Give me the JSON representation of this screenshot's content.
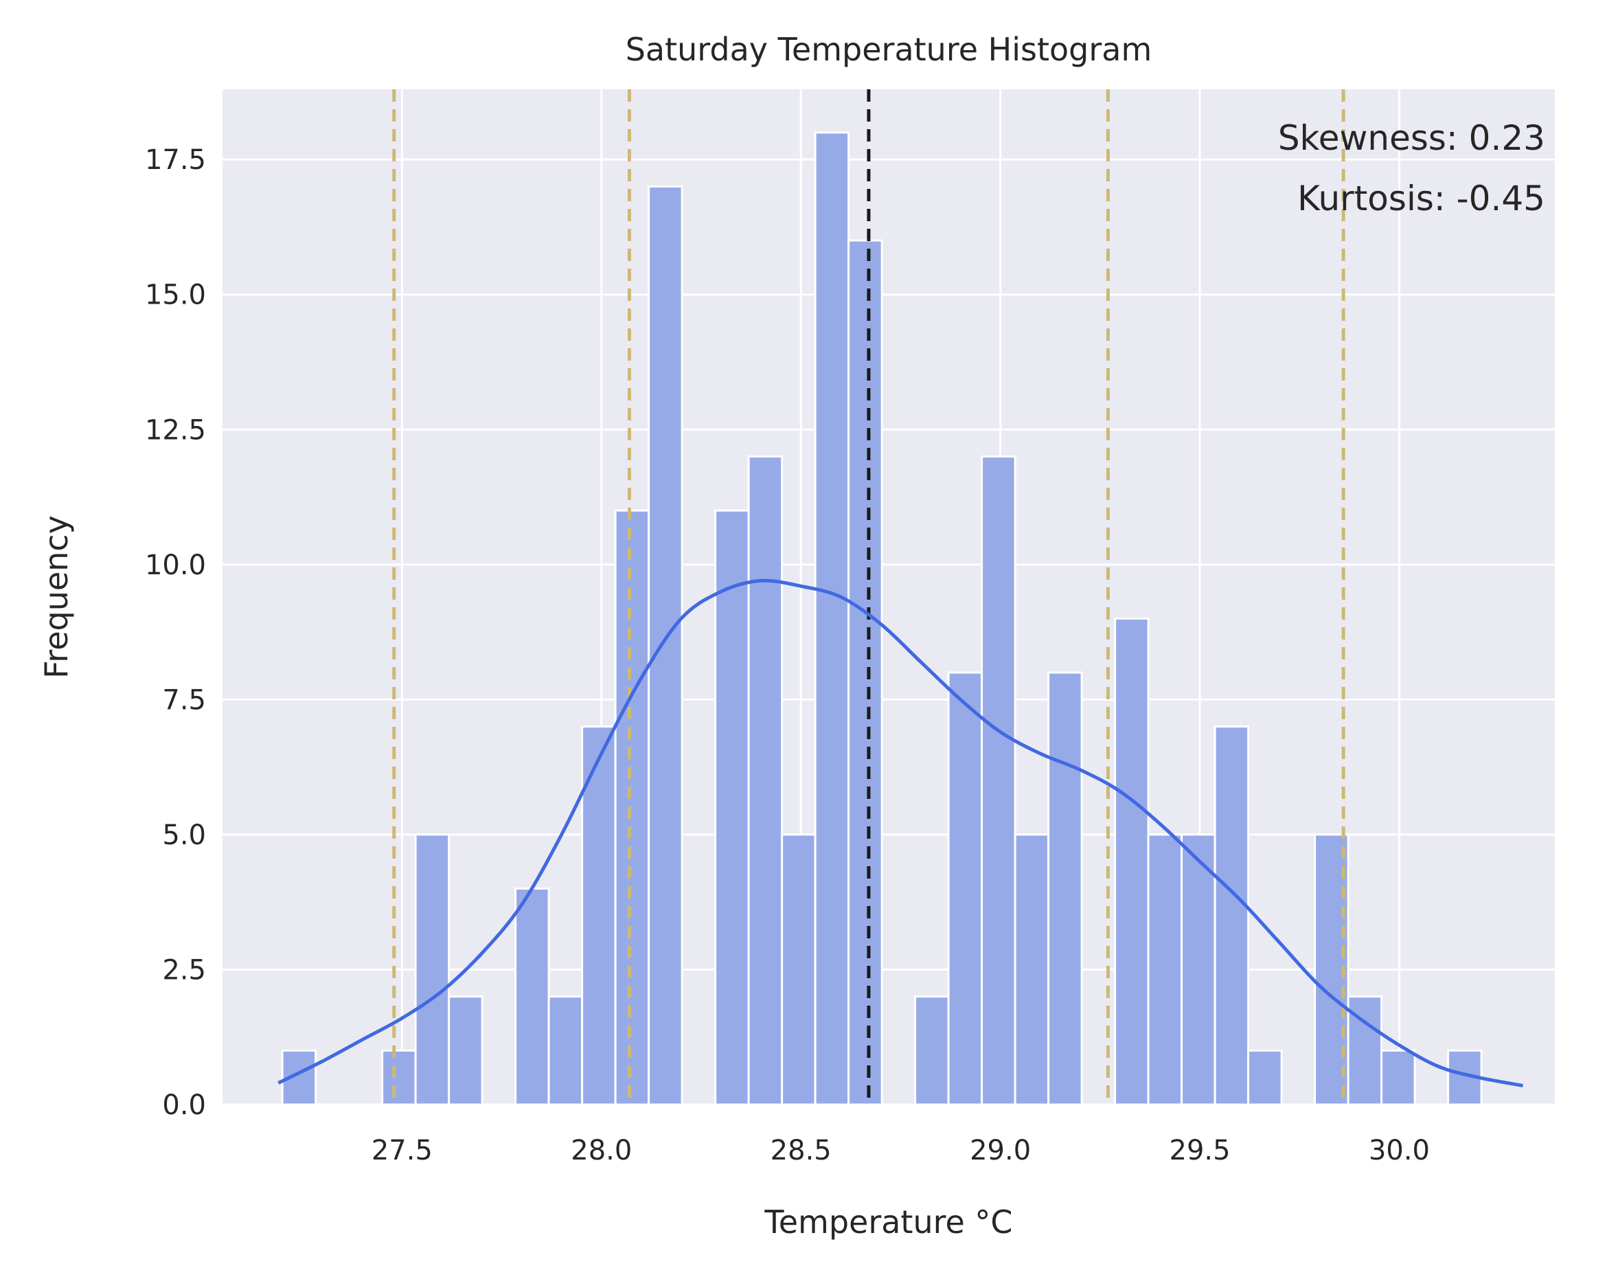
{
  "chart_data": {
    "type": "bar",
    "title": "Saturday Temperature Histogram",
    "xlabel": "Temperature °C",
    "ylabel": "Frequency",
    "xlim": [
      27.05,
      30.39
    ],
    "ylim": [
      0,
      18.8
    ],
    "xticks": [
      27.5,
      28.0,
      28.5,
      29.0,
      29.5,
      30.0
    ],
    "xtick_labels": [
      "27.5",
      "28.0",
      "28.5",
      "29.0",
      "29.5",
      "30.0"
    ],
    "yticks": [
      0,
      2.5,
      5,
      7.5,
      10,
      12.5,
      15,
      17.5
    ],
    "ytick_labels": [
      "0.0",
      "2.5",
      "5.0",
      "7.5",
      "10.0",
      "12.5",
      "15.0",
      "17.5"
    ],
    "grid": true,
    "bin_start": 27.2,
    "bin_width": 0.0835,
    "counts": [
      1,
      0,
      0,
      1,
      5,
      2,
      0,
      4,
      2,
      7,
      11,
      17,
      0,
      11,
      12,
      5,
      18,
      16,
      0,
      2,
      8,
      12,
      5,
      8,
      0,
      9,
      5,
      5,
      7,
      1,
      0,
      5,
      2,
      1,
      0,
      1
    ],
    "kde": {
      "x": [
        27.19,
        27.3,
        27.4,
        27.5,
        27.6,
        27.7,
        27.8,
        27.9,
        28.0,
        28.1,
        28.2,
        28.3,
        28.4,
        28.5,
        28.6,
        28.7,
        28.8,
        28.9,
        29.0,
        29.1,
        29.2,
        29.3,
        29.4,
        29.5,
        29.6,
        29.7,
        29.8,
        29.9,
        30.0,
        30.1,
        30.2,
        30.31
      ],
      "y": [
        0.4,
        0.8,
        1.2,
        1.6,
        2.1,
        2.8,
        3.7,
        5.0,
        6.5,
        7.9,
        9.0,
        9.5,
        9.7,
        9.6,
        9.4,
        8.9,
        8.2,
        7.5,
        6.9,
        6.5,
        6.2,
        5.8,
        5.2,
        4.5,
        3.8,
        3.0,
        2.2,
        1.6,
        1.1,
        0.7,
        0.5,
        0.35
      ]
    },
    "vlines": [
      {
        "x": 27.48,
        "style": "dashed",
        "color": "#ccb974"
      },
      {
        "x": 28.07,
        "style": "dashed",
        "color": "#ccb974"
      },
      {
        "x": 28.67,
        "style": "dashed",
        "color": "#1a1a1a"
      },
      {
        "x": 29.27,
        "style": "dashed",
        "color": "#ccb974"
      },
      {
        "x": 29.86,
        "style": "dashed",
        "color": "#ccb974"
      }
    ],
    "annotations": [
      "Skewness: 0.23",
      "Kurtosis: -0.45"
    ],
    "colors": {
      "bar_fill": "#97aae8",
      "kde_line": "#4169e1",
      "plot_background": "#eaeaf2",
      "grid": "#ffffff"
    }
  }
}
